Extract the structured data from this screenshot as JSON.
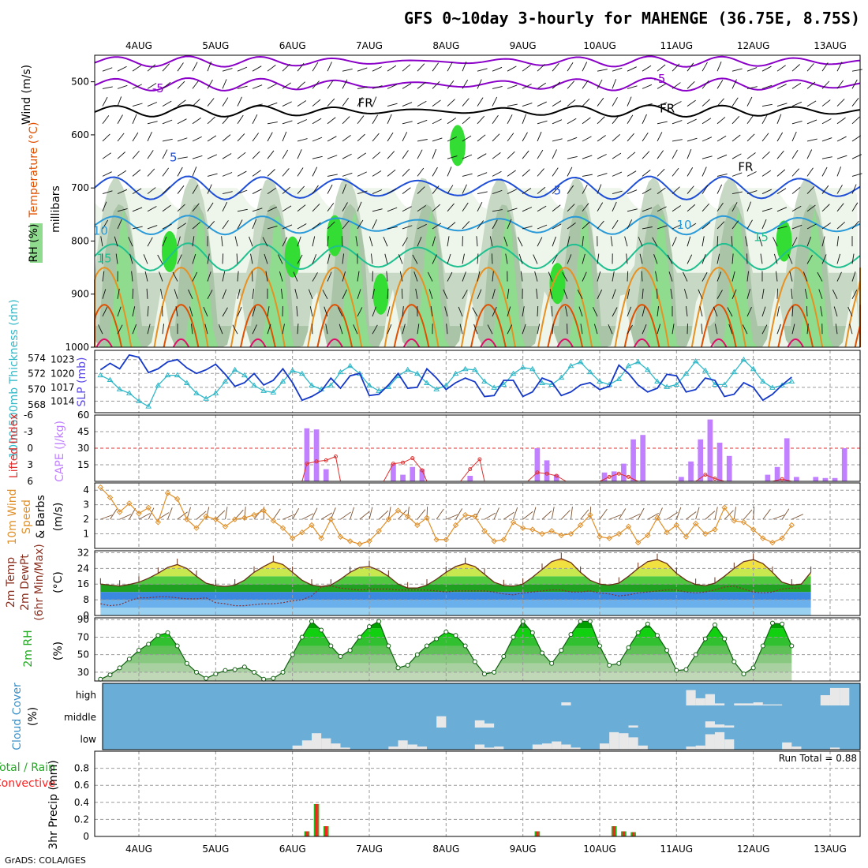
{
  "title": "GFS 0~10day 3-hourly for MAHENGE (36.75E, 8.75S)",
  "credit": "GrADS: COLA/IGES",
  "colors": {
    "rh_light": "#eef5ea",
    "rh_mid": "#c7d9c4",
    "rh_dark": "#a9c4a6",
    "rh_green": "#8fdc8f",
    "rh_bright": "#33dd33",
    "temp_neg": "#8a00c8",
    "temp_fr": "#000000",
    "temp_5": "#1f4fd8",
    "temp_10": "#2a9ad8",
    "temp_15": "#20c090",
    "temp_20": "#e89020",
    "temp_25": "#e05000",
    "temp_30": "#e0106a",
    "slp": "#1438c8",
    "thickness": "#30b8c8",
    "cape": "#c080ff",
    "li": "#e03030",
    "wind": "#e0902a",
    "cloud_bg": "#6aaed8",
    "precip_total": "#22bb22",
    "precip_conv": "#ff2020"
  },
  "chart_data": [
    {
      "id": "upper_air",
      "type": "heatmap",
      "title_parts": {
        "wind": "Wind (m/s)",
        "temp": "Temperature (°C)",
        "rh": "RH (%)"
      },
      "ylabel": "millibars",
      "yticks": [
        500,
        600,
        700,
        800,
        900,
        1000
      ],
      "ylim": [
        450,
        1000
      ],
      "x_labels_top": [
        "4AUG",
        "5AUG",
        "6AUG",
        "7AUG",
        "8AUG",
        "9AUG",
        "10AUG",
        "11AUG",
        "12AUG",
        "13AUG"
      ],
      "contour_labels": [
        {
          "text": "-5",
          "x": 0.25,
          "p": 520,
          "series": "temp_neg"
        },
        {
          "text": "-5",
          "x": 6.78,
          "p": 502,
          "series": "temp_neg"
        },
        {
          "text": "FR",
          "x": 2.95,
          "p": 547,
          "series": "temp_fr"
        },
        {
          "text": "FR",
          "x": 6.88,
          "p": 558,
          "series": "temp_fr"
        },
        {
          "text": "FR",
          "x": 7.9,
          "p": 668,
          "series": "temp_fr"
        },
        {
          "text": "5",
          "x": 0.45,
          "p": 650,
          "series": "temp_5"
        },
        {
          "text": "5",
          "x": 5.45,
          "p": 712,
          "series": "temp_5"
        },
        {
          "text": "10",
          "x": -0.5,
          "p": 788,
          "series": "temp_10"
        },
        {
          "text": "10",
          "x": 7.1,
          "p": 777,
          "series": "temp_10"
        },
        {
          "text": "15",
          "x": -0.45,
          "p": 840,
          "series": "temp_15"
        },
        {
          "text": "15",
          "x": 8.1,
          "p": 800,
          "series": "temp_15"
        }
      ]
    },
    {
      "id": "slp_thickness",
      "type": "line",
      "title": "1000-500mb Thickness (dm)",
      "title2": "SLP (mb)",
      "ylim_left": [
        567,
        575
      ],
      "yticks_left": [
        568,
        570,
        572,
        574
      ],
      "ylim_right": [
        1011.5,
        1025
      ],
      "yticks_right": [
        1014,
        1017,
        1020,
        1023
      ],
      "slp": [
        1020.8,
        1022.2,
        1021,
        1024,
        1023.5,
        1020.2,
        1021,
        1022.5,
        1023,
        1021.2,
        1020,
        1020.8,
        1022,
        1019.8,
        1017.2,
        1018,
        1020,
        1017.5,
        1018.5,
        1021,
        1018,
        1014.2,
        1015,
        1016.2,
        1019,
        1016.8,
        1019.5,
        1020,
        1015.2,
        1015.5,
        1017.5,
        1020,
        1016.8,
        1017,
        1021,
        1019,
        1016.5,
        1018,
        1019,
        1018.2,
        1015,
        1015.2,
        1018.5,
        1018.5,
        1015,
        1016,
        1019,
        1018.2,
        1015.2,
        1016,
        1017.5,
        1018,
        1016.5,
        1017.2,
        1021.8,
        1020,
        1017.5,
        1016,
        1016.8,
        1019.8,
        1019.5,
        1016,
        1016.5,
        1019,
        1018.5,
        1015,
        1015.5,
        1018,
        1017,
        1014.2,
        1015.5,
        1017.5,
        1019.2
      ],
      "thickness": [
        571.8,
        571.2,
        570,
        569.5,
        568.5,
        567.8,
        570.5,
        571.8,
        571.8,
        570.8,
        569.5,
        568.8,
        569.5,
        571,
        572.5,
        571.8,
        570.5,
        569.8,
        569.6,
        571,
        572.4,
        572,
        570.5,
        570,
        570.5,
        572.2,
        573,
        572,
        570.5,
        569.8,
        570.3,
        571.7,
        572.5,
        572,
        570.8,
        570,
        570.5,
        572,
        572.6,
        572.5,
        571,
        570.2,
        570.6,
        572,
        572.8,
        572.6,
        570.8,
        570.6,
        571.5,
        573,
        573.5,
        572.2,
        571,
        570.6,
        571.3,
        573,
        573.5,
        572.5,
        571,
        570.3,
        570.6,
        572,
        573.6,
        572.4,
        570.6,
        570.6,
        572.2,
        573.8,
        572.6,
        571,
        570.2,
        570.5,
        571
      ]
    },
    {
      "id": "cape_li",
      "type": "bar",
      "title": "Lifted Index",
      "title2": "CAPE (J/kg)",
      "ylim_left": [
        6,
        -6
      ],
      "yticks_left": [
        -6,
        -3,
        0,
        3,
        6
      ],
      "ytick_labels_left": [
        "-6",
        "-3",
        "0",
        "3",
        "6"
      ],
      "ylim_right": [
        0,
        60
      ],
      "yticks_right": [
        15,
        30,
        45,
        60
      ],
      "cape_bars": [
        [
          21.5,
          48
        ],
        [
          22.5,
          47
        ],
        [
          23.5,
          11
        ],
        [
          30.5,
          16
        ],
        [
          31.5,
          6
        ],
        [
          32.5,
          13
        ],
        [
          33.5,
          11
        ],
        [
          38.5,
          5
        ],
        [
          45.5,
          30
        ],
        [
          46.5,
          19
        ],
        [
          47.5,
          6
        ],
        [
          52.5,
          8
        ],
        [
          53.5,
          9
        ],
        [
          54.5,
          16
        ],
        [
          55.5,
          38
        ],
        [
          56.5,
          42
        ],
        [
          60.5,
          4
        ],
        [
          61.5,
          18
        ],
        [
          62.5,
          38
        ],
        [
          63.5,
          56
        ],
        [
          64.5,
          35
        ],
        [
          65.5,
          23
        ],
        [
          69.5,
          6
        ],
        [
          70.5,
          13
        ],
        [
          71.5,
          39
        ],
        [
          72.5,
          4
        ],
        [
          74.5,
          4
        ],
        [
          75.5,
          3
        ],
        [
          76.5,
          3
        ],
        [
          77.5,
          30
        ]
      ],
      "li_points": [
        [
          21,
          6
        ],
        [
          21.5,
          2.8
        ],
        [
          22.5,
          2.4
        ],
        [
          23.5,
          2.2
        ],
        [
          24.5,
          1.5
        ],
        [
          25,
          6
        ],
        [
          29.5,
          6
        ],
        [
          30.5,
          2.8
        ],
        [
          31.5,
          2.6
        ],
        [
          32.5,
          1.8
        ],
        [
          33.5,
          4
        ],
        [
          34,
          6
        ],
        [
          37.5,
          6
        ],
        [
          38.5,
          3.8
        ],
        [
          39.5,
          2
        ],
        [
          40,
          6
        ],
        [
          44.5,
          6
        ],
        [
          45.5,
          4.4
        ],
        [
          46.5,
          4.6
        ],
        [
          47.5,
          5
        ],
        [
          48.5,
          6
        ],
        [
          52,
          6
        ],
        [
          53,
          5.2
        ],
        [
          54,
          4.6
        ],
        [
          55,
          5.2
        ],
        [
          56,
          6
        ],
        [
          62,
          6
        ],
        [
          63,
          4.8
        ],
        [
          64,
          5.5
        ],
        [
          65,
          6
        ],
        [
          70,
          6
        ],
        [
          71,
          5.6
        ],
        [
          72,
          6
        ]
      ]
    },
    {
      "id": "wind_10m",
      "type": "line",
      "title": "10m Wind Speed & Barbs",
      "ylabel": "(m/s)",
      "ylim": [
        0,
        4.5
      ],
      "yticks": [
        1,
        2,
        3,
        4
      ],
      "values": [
        4.2,
        3.5,
        2.5,
        3.1,
        2.4,
        2.8,
        1.8,
        3.8,
        3.4,
        2,
        1.4,
        2.2,
        2,
        1.5,
        2,
        2.1,
        2.3,
        2.6,
        1.9,
        1.4,
        0.7,
        1.1,
        1.6,
        0.7,
        2,
        0.8,
        0.5,
        0.3,
        0.5,
        1.2,
        2,
        2.6,
        2.2,
        1.6,
        2.1,
        0.6,
        0.6,
        1.6,
        2.3,
        2.2,
        1.2,
        0.5,
        0.6,
        1.8,
        1.4,
        1.3,
        1,
        1.2,
        0.9,
        1,
        1.6,
        2.3,
        0.8,
        0.7,
        1,
        1.5,
        0.4,
        0.9,
        2.1,
        1.1,
        1.6,
        0.8,
        1.7,
        1,
        1.3,
        2.8,
        1.9,
        1.8,
        1.3,
        0.7,
        0.4,
        0.7,
        1.6
      ]
    },
    {
      "id": "temp_2m",
      "type": "area",
      "title_lines": [
        "2m Temp",
        "2m DewPt",
        "(6hr Min/Max)"
      ],
      "ylabel": "(°C)",
      "ylim": [
        0,
        33
      ],
      "yticks": [
        0,
        8,
        16,
        24,
        32
      ],
      "temp": [
        16,
        15.5,
        15,
        15.8,
        17,
        19,
        21.5,
        24.5,
        26,
        24,
        20,
        16.5,
        15.2,
        14.8,
        15.5,
        18,
        22,
        25,
        27.5,
        26,
        22,
        18,
        15.5,
        14.8,
        15.5,
        18.5,
        22,
        24.5,
        25,
        23,
        20,
        16,
        14,
        14,
        15.5,
        18.5,
        22,
        25,
        26.5,
        25,
        21,
        17,
        15.2,
        15,
        16,
        19.5,
        23.5,
        27.5,
        29,
        27,
        22,
        18,
        16,
        15.5,
        16.5,
        20,
        24,
        27.5,
        28.5,
        26.5,
        21.5,
        18,
        15.8,
        15.2,
        16.5,
        20,
        24,
        27.5,
        28.5,
        26.5,
        22,
        17,
        15.5,
        16,
        22
      ],
      "dewpoint": [
        6,
        5,
        5.5,
        7.5,
        9,
        9,
        9.5,
        9.5,
        9,
        8.5,
        8.5,
        9,
        6.5,
        6,
        5,
        5,
        5.5,
        6,
        6,
        6.5,
        7.5,
        8,
        10,
        14.5,
        15,
        14,
        13.5,
        13,
        13.5,
        13.5,
        13.5,
        13,
        13,
        13,
        13,
        12.5,
        12,
        12.5,
        12.5,
        12.5,
        12.5,
        12,
        11,
        10.5,
        11.5,
        12,
        12.5,
        13,
        13,
        12,
        12,
        12.5,
        11.5,
        11,
        10,
        10.5,
        11.5,
        12,
        12.5,
        13,
        13,
        12,
        11.5,
        12,
        13,
        14.5,
        15,
        13.5,
        12,
        11.5,
        12,
        13.5,
        14,
        14
      ]
    },
    {
      "id": "rh_2m",
      "type": "area",
      "title": "2m RH",
      "ylabel": "(%)",
      "ylim": [
        20,
        92
      ],
      "yticks": [
        30,
        50,
        70,
        90
      ],
      "values": [
        22,
        27,
        35,
        45,
        55,
        62,
        72,
        75,
        60,
        40,
        30,
        23,
        28,
        32,
        33,
        36,
        30,
        22,
        23,
        30,
        50,
        70,
        88,
        78,
        60,
        48,
        55,
        70,
        82,
        88,
        60,
        35,
        38,
        50,
        60,
        68,
        76,
        72,
        60,
        42,
        28,
        30,
        48,
        70,
        88,
        75,
        52,
        40,
        55,
        73,
        88,
        88,
        60,
        38,
        40,
        58,
        75,
        85,
        72,
        55,
        32,
        33,
        50,
        68,
        84,
        68,
        42,
        28,
        35,
        60,
        86,
        85,
        60
      ]
    },
    {
      "id": "cloud_cover",
      "type": "bar",
      "title": "Cloud Cover",
      "ylabel": "(%)",
      "levels": [
        "high",
        "middle",
        "low"
      ],
      "high": [
        [
          48.5,
          0.15
        ],
        [
          61.5,
          0.75
        ],
        [
          62.5,
          0.35
        ],
        [
          63.5,
          0.55
        ],
        [
          64.5,
          0.1
        ],
        [
          66.5,
          0.1
        ],
        [
          67.5,
          0.1
        ],
        [
          68.5,
          0.15
        ],
        [
          69.5,
          0.05
        ],
        [
          70.5,
          0.05
        ],
        [
          75.5,
          0.5
        ],
        [
          76.5,
          0.85
        ],
        [
          77.5,
          0.85
        ]
      ],
      "middle": [
        [
          35.5,
          0.55
        ],
        [
          39.5,
          0.35
        ],
        [
          40.5,
          0.2
        ],
        [
          55.5,
          0.1
        ],
        [
          63.5,
          0.3
        ],
        [
          64.5,
          0.15
        ],
        [
          65.5,
          0.1
        ]
      ],
      "low": [
        [
          20.5,
          0.2
        ],
        [
          21.5,
          0.45
        ],
        [
          22.5,
          0.8
        ],
        [
          23.5,
          0.55
        ],
        [
          24.5,
          0.3
        ],
        [
          25.5,
          0.1
        ],
        [
          30.5,
          0.15
        ],
        [
          31.5,
          0.45
        ],
        [
          32.5,
          0.25
        ],
        [
          33.5,
          0.15
        ],
        [
          39.5,
          0.25
        ],
        [
          40.5,
          0.1
        ],
        [
          41.5,
          0.15
        ],
        [
          45.5,
          0.25
        ],
        [
          46.5,
          0.3
        ],
        [
          47.5,
          0.4
        ],
        [
          48.5,
          0.25
        ],
        [
          49.5,
          0.1
        ],
        [
          52.5,
          0.3
        ],
        [
          53.5,
          0.85
        ],
        [
          54.5,
          0.8
        ],
        [
          55.5,
          0.6
        ],
        [
          56.5,
          0.2
        ],
        [
          61.5,
          0.15
        ],
        [
          62.5,
          0.2
        ],
        [
          63.5,
          0.75
        ],
        [
          64.5,
          0.85
        ],
        [
          65.5,
          0.5
        ],
        [
          71.5,
          0.35
        ],
        [
          72.5,
          0.15
        ],
        [
          76.5,
          0.1
        ]
      ]
    },
    {
      "id": "precip",
      "type": "bar",
      "title": "3hr Precip (mm)",
      "title_right_a": "Total / Rain",
      "title_right_b": "Convective",
      "run_total_label": "Run Total = 0.88",
      "ylim": [
        0,
        1
      ],
      "yticks": [
        0,
        0.2,
        0.4,
        0.6,
        0.8
      ],
      "bars": [
        [
          21.5,
          0.06,
          0.06
        ],
        [
          22.5,
          0.38,
          0.38
        ],
        [
          23.5,
          0.12,
          0.12
        ],
        [
          45.5,
          0.06,
          0.06
        ],
        [
          53.5,
          0.12,
          0.12
        ],
        [
          54.5,
          0.06,
          0.06
        ],
        [
          55.5,
          0.05,
          0.05
        ]
      ],
      "x_labels_bottom": [
        "4AUG",
        "5AUG",
        "6AUG",
        "7AUG",
        "8AUG",
        "9AUG",
        "10AUG",
        "11AUG",
        "12AUG",
        "13AUG"
      ]
    }
  ]
}
